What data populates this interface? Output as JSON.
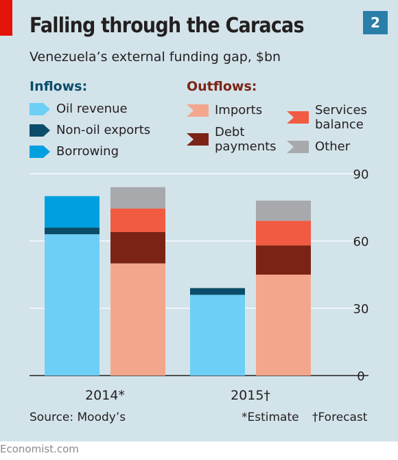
{
  "header": {
    "title": "Falling through the Caracas",
    "subtitle": "Venezuela’s external funding gap, $bn",
    "figure_number": "2"
  },
  "legend": {
    "inflows_heading": "Inflows:",
    "outflows_heading": "Outflows:",
    "inflows": [
      {
        "label": "Oil revenue",
        "color": "#6dcff6"
      },
      {
        "label": "Non-oil exports",
        "color": "#0a4d6a"
      },
      {
        "label": "Borrowing",
        "color": "#00a0e0"
      }
    ],
    "outflows": [
      {
        "label": "Imports",
        "color": "#f4a68c"
      },
      {
        "label": "Debt payments",
        "color": "#7b2415"
      },
      {
        "label": "Services balance",
        "color": "#f15b41"
      },
      {
        "label": "Other",
        "color": "#a7a9ac"
      }
    ]
  },
  "chart_data": {
    "type": "bar",
    "stacked": true,
    "categories": [
      "2014*",
      "2015†"
    ],
    "ylim": [
      0,
      90
    ],
    "yticks": [
      0,
      30,
      60,
      90
    ],
    "y_axis_side": "right",
    "grid": true,
    "series": [
      {
        "name": "Oil revenue",
        "group": "inflows",
        "color": "#6dcff6",
        "values": [
          63,
          36
        ]
      },
      {
        "name": "Non-oil exports",
        "group": "inflows",
        "color": "#0a4d6a",
        "values": [
          3,
          3
        ]
      },
      {
        "name": "Borrowing",
        "group": "inflows",
        "color": "#00a0e0",
        "values": [
          14,
          0
        ]
      },
      {
        "name": "Imports",
        "group": "outflows",
        "color": "#f4a68c",
        "values": [
          50,
          45
        ]
      },
      {
        "name": "Debt payments",
        "group": "outflows",
        "color": "#7b2415",
        "values": [
          14,
          13
        ]
      },
      {
        "name": "Services balance",
        "group": "outflows",
        "color": "#f15b41",
        "values": [
          10.5,
          11
        ]
      },
      {
        "name": "Other",
        "group": "outflows",
        "color": "#a7a9ac",
        "values": [
          9.5,
          9
        ]
      }
    ]
  },
  "footer": {
    "source": "Source: Moody’s",
    "estimate_note": "*Estimate",
    "forecast_note": "†Forecast",
    "brand": "Economist.com"
  }
}
